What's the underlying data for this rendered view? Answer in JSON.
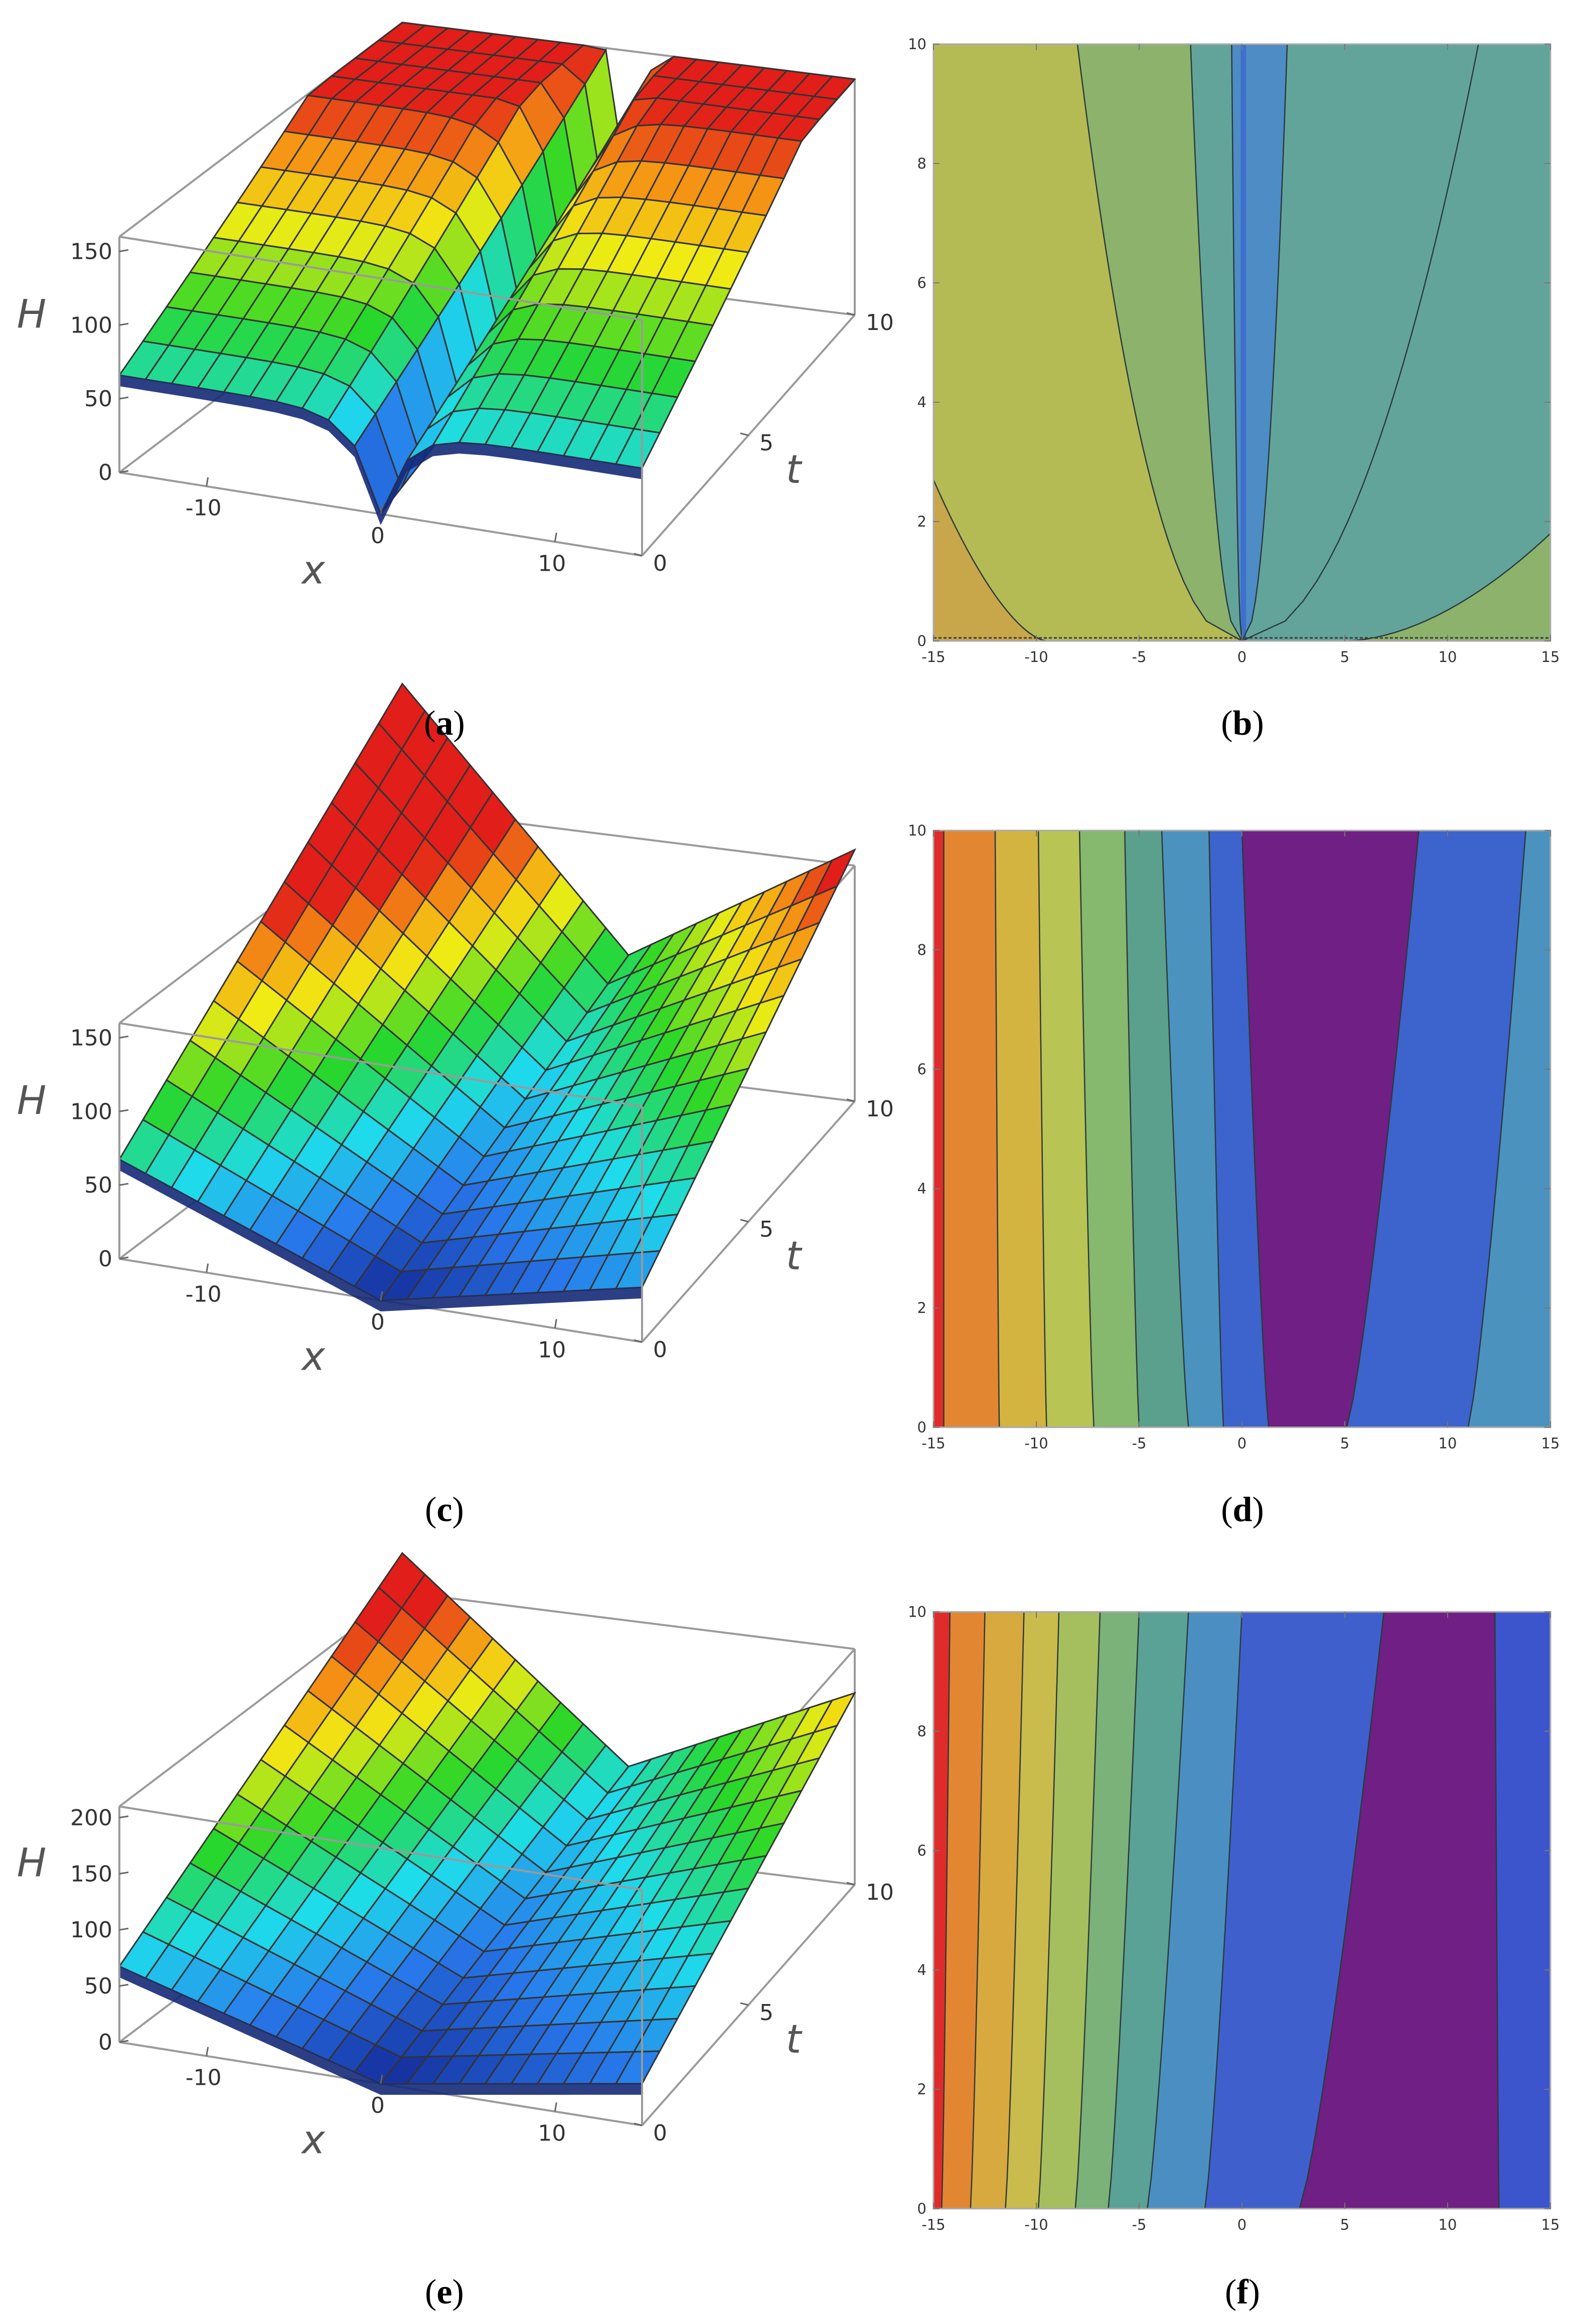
{
  "panels": [
    {
      "id": "a",
      "label": "a",
      "kind": "surface3d",
      "z_axis_label": "H",
      "x_axis_label": "x",
      "t_axis_label": "t",
      "z_ticks": [
        "150",
        "100",
        "50",
        "0"
      ],
      "x_ticks": [
        "-10",
        "0",
        "10"
      ],
      "t_ticks": [
        "10",
        "5",
        "0"
      ],
      "profile": "spike"
    },
    {
      "id": "b",
      "label": "b",
      "kind": "contour",
      "x_ticks": [
        "-15",
        "-10",
        "-5",
        "0",
        "5",
        "10",
        "15"
      ],
      "y_ticks": [
        "0",
        "2",
        "4",
        "6",
        "8",
        "10"
      ],
      "band_colors": [
        "#c8a64a",
        "#b4bb55",
        "#8cb26c",
        "#63a49a",
        "#4d8cc5",
        "#3e6fcc"
      ]
    },
    {
      "id": "c",
      "label": "c",
      "kind": "surface3d",
      "z_axis_label": "H",
      "x_axis_label": "x",
      "t_axis_label": "t",
      "z_ticks": [
        "150",
        "100",
        "50",
        "0"
      ],
      "x_ticks": [
        "-10",
        "0",
        "10"
      ],
      "t_ticks": [
        "10",
        "5",
        "0"
      ],
      "profile": "vshape"
    },
    {
      "id": "d",
      "label": "d",
      "kind": "contour",
      "x_ticks": [
        "-15",
        "-10",
        "-5",
        "0",
        "5",
        "10",
        "15"
      ],
      "y_ticks": [
        "0",
        "2",
        "4",
        "6",
        "8",
        "10"
      ],
      "band_colors": [
        "#e02b2b",
        "#e38632",
        "#d4b441",
        "#b8c453",
        "#86b86e",
        "#5ba08c",
        "#4b92bf",
        "#3d63cc",
        "#701f85",
        "#3d63cc",
        "#4b92bf",
        "#5ba08c"
      ]
    },
    {
      "id": "e",
      "label": "e",
      "kind": "surface3d",
      "z_axis_label": "H",
      "x_axis_label": "x",
      "t_axis_label": "t",
      "z_ticks": [
        "200",
        "150",
        "100",
        "50",
        "0"
      ],
      "x_ticks": [
        "-10",
        "0",
        "10"
      ],
      "t_ticks": [
        "10",
        "5",
        "0"
      ],
      "profile": "vshape"
    },
    {
      "id": "f",
      "label": "f",
      "kind": "contour",
      "x_ticks": [
        "-15",
        "-10",
        "-5",
        "0",
        "5",
        "10",
        "15"
      ],
      "y_ticks": [
        "0",
        "2",
        "4",
        "6",
        "8",
        "10"
      ],
      "band_colors": [
        "#e02b2b",
        "#e38632",
        "#d8a93e",
        "#c9bb4c",
        "#a5bf5e",
        "#7ab27a",
        "#5aa196",
        "#4b8fc2",
        "#3f60cc",
        "#701f85",
        "#3d55cc",
        "#4a86c8"
      ]
    }
  ],
  "chart_data": [
    {
      "type": "surface3d",
      "panel": "a",
      "xlabel": "x",
      "ylabel": "t",
      "zlabel": "H",
      "xlim": [
        -15,
        15
      ],
      "ylim": [
        0,
        10
      ],
      "zlim": [
        0,
        160
      ],
      "x_ticks": [
        -10,
        0,
        10
      ],
      "y_ticks": [
        0,
        5,
        10
      ],
      "z_ticks": [
        0,
        50,
        100,
        150
      ],
      "shape": "cusp minimum along x=0 with sharp spike down at small t; surface rises toward |x|=15, steeper for x<0",
      "colormap": "rainbow (blue low, red high)",
      "grid_mesh": true
    },
    {
      "type": "contour",
      "panel": "b",
      "xlabel": "",
      "ylabel": "",
      "xlim": [
        -15,
        15
      ],
      "ylim": [
        0,
        10
      ],
      "x_ticks": [
        -15,
        -10,
        -5,
        0,
        5,
        10,
        15
      ],
      "y_ticks": [
        0,
        2,
        4,
        6,
        8,
        10
      ],
      "description": "contours fanning out from x=0 at t=0, narrow blue band along x=0"
    },
    {
      "type": "surface3d",
      "panel": "c",
      "xlabel": "x",
      "ylabel": "t",
      "zlabel": "H",
      "xlim": [
        -15,
        15
      ],
      "ylim": [
        0,
        10
      ],
      "zlim": [
        0,
        160
      ],
      "x_ticks": [
        -10,
        0,
        10
      ],
      "y_ticks": [
        0,
        5,
        10
      ],
      "z_ticks": [
        0,
        50,
        100,
        150
      ],
      "shape": "V-shaped valley with minimum near x=0, rising with |x| and with t",
      "colormap": "rainbow (blue low, red high)",
      "grid_mesh": true
    },
    {
      "type": "contour",
      "panel": "d",
      "xlabel": "",
      "ylabel": "",
      "xlim": [
        -15,
        15
      ],
      "ylim": [
        0,
        10
      ],
      "x_ticks": [
        -15,
        -10,
        -5,
        0,
        5,
        10,
        15
      ],
      "y_ticks": [
        0,
        2,
        4,
        6,
        8,
        10
      ],
      "contour_lines_at_t0": [
        -14.5,
        -11.8,
        -9.5,
        -7.2,
        -5.0,
        -2.6,
        -0.9,
        1.3,
        5.1,
        11.0
      ],
      "contour_lines_at_t10": [
        -14.5,
        -12.0,
        -9.9,
        -7.9,
        -5.7,
        -3.9,
        -1.6,
        0.0,
        8.6,
        13.8
      ],
      "band_colors": [
        "#e02b2b",
        "#e38632",
        "#d4b441",
        "#b8c453",
        "#86b86e",
        "#5ba08c",
        "#4b92bf",
        "#3d63cc",
        "#701f85",
        "#3d63cc",
        "#4b92bf",
        "#5ba08c"
      ]
    },
    {
      "type": "surface3d",
      "panel": "e",
      "xlabel": "x",
      "ylabel": "t",
      "zlabel": "H",
      "xlim": [
        -15,
        15
      ],
      "ylim": [
        0,
        10
      ],
      "zlim": [
        0,
        210
      ],
      "x_ticks": [
        -10,
        0,
        10
      ],
      "y_ticks": [
        0,
        5,
        10
      ],
      "z_ticks": [
        0,
        50,
        100,
        150,
        200
      ],
      "shape": "V-shaped valley with minimum near x=0, rising with |x| and with t",
      "colormap": "rainbow (blue low, red high)",
      "grid_mesh": true
    },
    {
      "type": "contour",
      "panel": "f",
      "xlabel": "",
      "ylabel": "",
      "xlim": [
        -15,
        15
      ],
      "ylim": [
        0,
        10
      ],
      "x_ticks": [
        -15,
        -10,
        -5,
        0,
        5,
        10,
        15
      ],
      "y_ticks": [
        0,
        2,
        4,
        6,
        8,
        10
      ],
      "contour_lines_at_t0": [
        -14.6,
        -13.2,
        -11.5,
        -9.9,
        -8.1,
        -6.5,
        -4.6,
        -1.8,
        2.8,
        12.5
      ],
      "contour_lines_at_t10": [
        -14.2,
        -12.5,
        -10.6,
        -8.9,
        -6.9,
        -5.0,
        -2.6,
        0.0,
        6.9,
        12.3
      ],
      "band_colors": [
        "#e02b2b",
        "#e38632",
        "#d8a93e",
        "#c9bb4c",
        "#a5bf5e",
        "#7ab27a",
        "#5aa196",
        "#4b8fc2",
        "#3f60cc",
        "#701f85",
        "#3d55cc",
        "#4a86c8"
      ]
    }
  ]
}
